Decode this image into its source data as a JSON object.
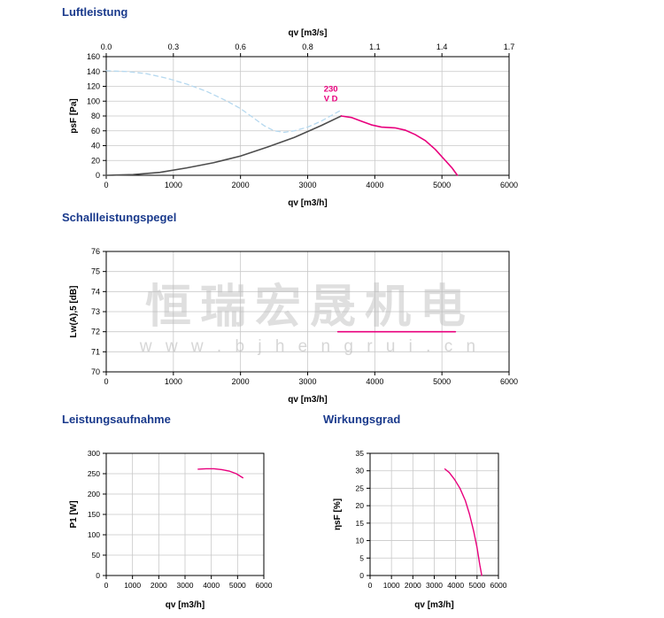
{
  "colors": {
    "title_blue": "#1a3a8c",
    "magenta": "#e8007d",
    "dark_curve": "#4d4d4d",
    "dashed_blue": "#b5d8ef",
    "grid": "#c8c8c8",
    "axis": "#000000"
  },
  "watermark": {
    "text": "恒瑞宏晟机电",
    "url": "w w w . b j h e n g r u i . c n"
  },
  "chart_data": [
    {
      "id": "luftleistung",
      "type": "line",
      "title": "Luftleistung",
      "xlabel": "qv [m3/h]",
      "ylabel": "psF [Pa]",
      "x2label": "qv [m3/s]",
      "xlim": [
        0,
        6000
      ],
      "ylim": [
        0,
        160
      ],
      "grid": true,
      "legend_position": "none",
      "xticks": [
        0,
        1000,
        2000,
        3000,
        4000,
        5000,
        6000
      ],
      "yticks": [
        0,
        20,
        40,
        60,
        80,
        100,
        120,
        140,
        160
      ],
      "x2ticks": [
        "0.0",
        "0.3",
        "0.6",
        "0.8",
        "1.1",
        "1.4",
        "1.7"
      ],
      "annotation": {
        "lines": [
          "230",
          "V D"
        ],
        "x": 3240,
        "y": 113,
        "color": "#e8007d"
      },
      "series": [
        {
          "name": "system-resistance-dashed",
          "color": "#b5d8ef",
          "width": 1.3,
          "dash": "5,4",
          "points": [
            [
              0,
              141
            ],
            [
              300,
              140
            ],
            [
              600,
              137
            ],
            [
              900,
              131
            ],
            [
              1200,
              123
            ],
            [
              1500,
              113
            ],
            [
              1800,
              100
            ],
            [
              2000,
              90
            ],
            [
              2200,
              77
            ],
            [
              2350,
              67
            ],
            [
              2500,
              60
            ],
            [
              2650,
              58
            ],
            [
              2800,
              60
            ],
            [
              3000,
              65
            ],
            [
              3200,
              73
            ],
            [
              3400,
              83
            ],
            [
              3500,
              88
            ]
          ]
        },
        {
          "name": "throttle-curve-dark",
          "color": "#4d4d4d",
          "width": 1.6,
          "points": [
            [
              0,
              0
            ],
            [
              400,
              1
            ],
            [
              800,
              4
            ],
            [
              1200,
              10
            ],
            [
              1600,
              17
            ],
            [
              2000,
              26
            ],
            [
              2400,
              38
            ],
            [
              2800,
              51
            ],
            [
              3200,
              67
            ],
            [
              3500,
              80
            ]
          ]
        },
        {
          "name": "fan-curve-230V",
          "color": "#e8007d",
          "width": 1.6,
          "points": [
            [
              3500,
              80
            ],
            [
              3650,
              78
            ],
            [
              3800,
              73
            ],
            [
              3950,
              68
            ],
            [
              4100,
              65
            ],
            [
              4300,
              64
            ],
            [
              4450,
              61
            ],
            [
              4600,
              55
            ],
            [
              4750,
              47
            ],
            [
              4900,
              35
            ],
            [
              5050,
              20
            ],
            [
              5150,
              10
            ],
            [
              5230,
              0
            ]
          ]
        }
      ]
    },
    {
      "id": "schallleistungspegel",
      "type": "line",
      "title": "Schallleistungspegel",
      "xlabel": "qv [m3/h]",
      "ylabel": "Lw(A),5 [dB]",
      "xlim": [
        0,
        6000
      ],
      "ylim": [
        70,
        76
      ],
      "grid": true,
      "xticks": [
        0,
        1000,
        2000,
        3000,
        4000,
        5000,
        6000
      ],
      "yticks": [
        70,
        71,
        72,
        73,
        74,
        75,
        76
      ],
      "series": [
        {
          "name": "sound-power-level-230V",
          "color": "#e8007d",
          "width": 1.6,
          "points": [
            [
              3450,
              72
            ],
            [
              5200,
              72
            ]
          ]
        }
      ]
    },
    {
      "id": "leistungsaufnahme",
      "type": "line",
      "title": "Leistungsaufnahme",
      "xlabel": "qv [m3/h]",
      "ylabel": "P1 [W]",
      "xlim": [
        0,
        6000
      ],
      "ylim": [
        0,
        300
      ],
      "grid": true,
      "xticks": [
        0,
        1000,
        2000,
        3000,
        4000,
        5000,
        6000
      ],
      "yticks": [
        0,
        50,
        100,
        150,
        200,
        250,
        300
      ],
      "series": [
        {
          "name": "power-input-230V",
          "color": "#e8007d",
          "width": 1.4,
          "points": [
            [
              3500,
              261
            ],
            [
              3800,
              262
            ],
            [
              4100,
              262
            ],
            [
              4400,
              260
            ],
            [
              4700,
              256
            ],
            [
              4950,
              250
            ],
            [
              5200,
              240
            ]
          ]
        }
      ]
    },
    {
      "id": "wirkungsgrad",
      "type": "line",
      "title": "Wirkungsgrad",
      "xlabel": "qv [m3/h]",
      "ylabel": "ηsF [%]",
      "xlim": [
        0,
        6000
      ],
      "ylim": [
        0,
        35
      ],
      "grid": true,
      "xticks": [
        0,
        1000,
        2000,
        3000,
        4000,
        5000,
        6000
      ],
      "yticks": [
        0,
        5,
        10,
        15,
        20,
        25,
        30,
        35
      ],
      "series": [
        {
          "name": "efficiency-230V",
          "color": "#e8007d",
          "width": 1.4,
          "points": [
            [
              3500,
              30.5
            ],
            [
              3700,
              29.5
            ],
            [
              3950,
              27.5
            ],
            [
              4200,
              25
            ],
            [
              4450,
              21.5
            ],
            [
              4650,
              17.5
            ],
            [
              4850,
              12.5
            ],
            [
              5000,
              8
            ],
            [
              5130,
              3
            ],
            [
              5220,
              0
            ]
          ]
        }
      ]
    }
  ]
}
